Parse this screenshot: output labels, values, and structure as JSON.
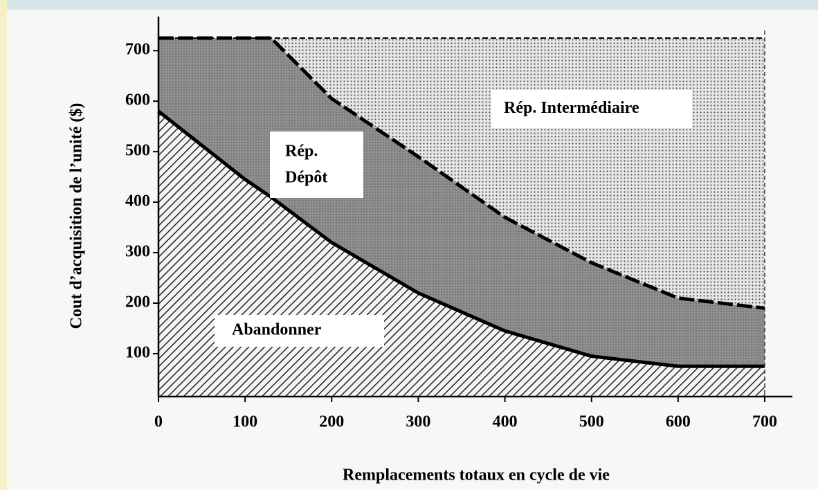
{
  "chart_data": {
    "type": "region",
    "xlabel": "Remplacements totaux en cycle de vie",
    "ylabel": "Cout d’acquisition de l’unité ($)",
    "x": [
      0,
      100,
      130,
      200,
      300,
      400,
      500,
      600,
      700
    ],
    "series": [
      {
        "name": "Abandonner",
        "color": "#555555",
        "values": [
          580,
          445,
          410,
          320,
          220,
          145,
          95,
          75,
          75
        ]
      },
      {
        "name": "Rép. Dépôt",
        "color": "#8c8c8c",
        "values": [
          725,
          725,
          725,
          605,
          490,
          370,
          280,
          210,
          190
        ]
      },
      {
        "name": "Rép. Intermédiaire",
        "color": "#d2d2d2",
        "values": [
          725,
          725,
          725,
          725,
          725,
          725,
          725,
          725,
          725
        ]
      }
    ],
    "region_labels": [
      "Abandonner",
      [
        "Rép.",
        "Dépôt"
      ],
      "Rép. Intermédiaire"
    ],
    "xlim": [
      0,
      700
    ],
    "xticks": [
      0,
      100,
      200,
      300,
      400,
      500,
      600,
      700
    ],
    "ylim": [
      15,
      740
    ],
    "yticks": [
      100,
      200,
      300,
      400,
      500,
      600,
      700
    ]
  }
}
